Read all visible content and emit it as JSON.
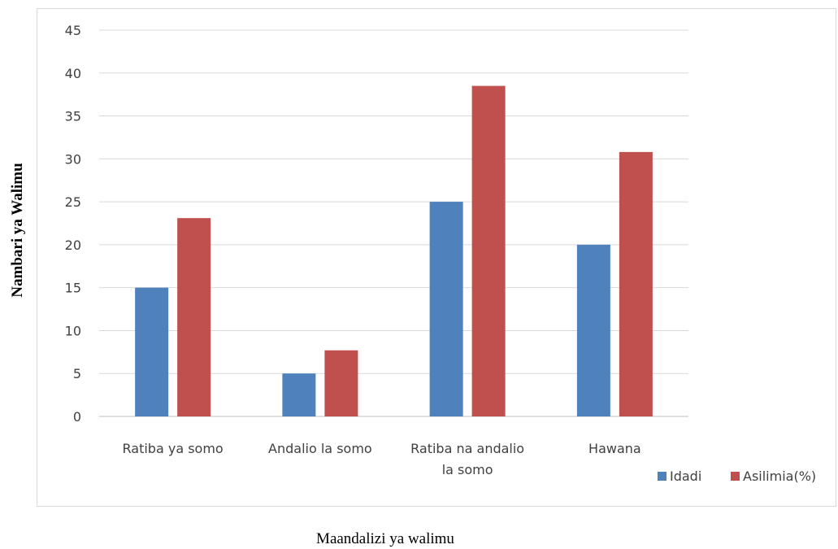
{
  "chart_data": {
    "type": "bar",
    "title": "",
    "xlabel": "Maandalizi ya walimu",
    "ylabel": "Nambari ya Walimu",
    "categories": [
      [
        "Ratiba ya somo"
      ],
      [
        "Andalio la somo"
      ],
      [
        "Ratiba na andalio",
        "la somo"
      ],
      [
        "Hawana"
      ]
    ],
    "series": [
      {
        "name": "Idadi",
        "color": "#4f81bd",
        "values": [
          15,
          5,
          25,
          20
        ]
      },
      {
        "name": "Asilimia(%)",
        "color": "#c0504d",
        "values": [
          23.1,
          7.7,
          38.5,
          30.8
        ]
      }
    ],
    "ylim": [
      0,
      45
    ],
    "yticks": [
      0,
      5,
      10,
      15,
      20,
      25,
      30,
      35,
      40,
      45
    ],
    "grid": true,
    "legend_position": "bottom-right"
  }
}
